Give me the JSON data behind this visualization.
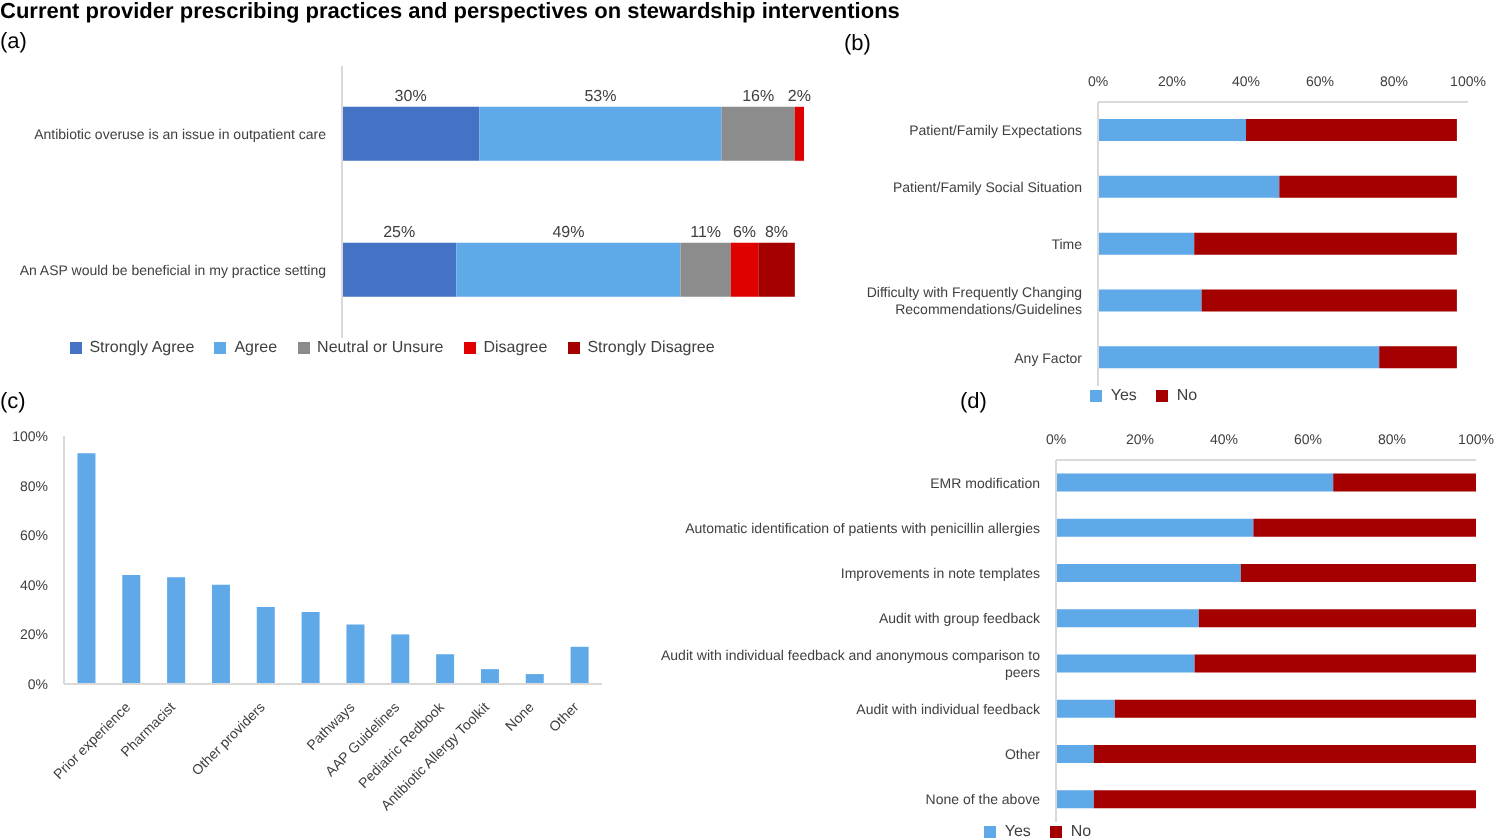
{
  "chart_data": [
    {
      "type": "bar",
      "title": "Current provider prescribing practices and perspectives on stewardship interventions",
      "subtitle": "(a)",
      "orientation": "horizontal",
      "stacked": true,
      "tick_labels": "y",
      "legend": "bottom",
      "categories": [
        "Antibiotic overuse is an issue in outpatient care",
        "An ASP would be beneficial in my practice setting"
      ],
      "series": [
        {
          "name": "Strongly Agree",
          "color": "#4472c4",
          "values": [
            30,
            25
          ],
          "value_labels": [
            "30%",
            "25%"
          ]
        },
        {
          "name": "Agree",
          "color": "#5fa9e8",
          "values": [
            53,
            49
          ],
          "value_labels": [
            "53%",
            "49%"
          ]
        },
        {
          "name": "Neutral or Unsure",
          "color": "#8c8c8c",
          "values": [
            16,
            11
          ],
          "value_labels": [
            "16%",
            "11%"
          ]
        },
        {
          "name": "Disagree",
          "color": "#e00000",
          "values": [
            2,
            6
          ],
          "value_labels": [
            "2%",
            "6%"
          ]
        },
        {
          "name": "Strongly Disagree",
          "color": "#a50000",
          "values": [
            0,
            8
          ],
          "value_labels": [
            null,
            "8%"
          ]
        }
      ]
    },
    {
      "type": "bar",
      "title": "(b)",
      "orientation": "horizontal",
      "stacked": true,
      "legend": "bottom",
      "categories": [
        "Patient/Family Expectations",
        "Patient/Family Social Situation",
        "Time",
        "Difficulty with Frequently Changing Recommendations/Guidelines",
        "Any Factor"
      ],
      "series": [
        {
          "name": "Yes",
          "color": "#5fa9e8",
          "values": [
            40,
            49,
            26,
            28,
            76
          ]
        },
        {
          "name": "No",
          "color": "#a50000",
          "values": [
            57,
            48,
            71,
            69,
            21
          ]
        }
      ],
      "xlim": [
        0,
        100
      ],
      "xticks": [
        {
          "value": 0,
          "label": "0%"
        },
        {
          "value": 20,
          "label": "20%"
        },
        {
          "value": 40,
          "label": "40%"
        },
        {
          "value": 60,
          "label": "60%"
        },
        {
          "value": 80,
          "label": "80%"
        },
        {
          "value": 100,
          "label": "100%"
        }
      ]
    },
    {
      "type": "bar",
      "title": "(c)",
      "categories": [
        null,
        "Prior experience",
        "Pharmacist",
        null,
        "Other providers",
        null,
        "Pathways",
        "AAP Guidelines",
        "Pediatric Redbook",
        "Antibiotic Allergy Toolkit",
        "None",
        "Other"
      ],
      "values": [
        93,
        44,
        43,
        40,
        31,
        29,
        24,
        20,
        12,
        6,
        4,
        15
      ],
      "color": "#5fa9e8",
      "ylim": [
        0,
        100
      ],
      "yticks": [
        {
          "value": 0,
          "label": "0%"
        },
        {
          "value": 20,
          "label": "20%"
        },
        {
          "value": 40,
          "label": "40%"
        },
        {
          "value": 60,
          "label": "60%"
        },
        {
          "value": 80,
          "label": "80%"
        },
        {
          "value": 100,
          "label": "100%"
        }
      ]
    },
    {
      "type": "bar",
      "title": "(d)",
      "orientation": "horizontal",
      "stacked": true,
      "legend": "bottom",
      "categories": [
        "EMR modification",
        "Automatic identification of patients with penicillin allergies",
        "Improvements in note templates",
        "Audit with group feedback",
        "Audit with individual feedback and anonymous comparison to peers",
        "Audit with individual feedback",
        "Other",
        "None of the above"
      ],
      "series": [
        {
          "name": "Yes",
          "color": "#5fa9e8",
          "values": [
            66,
            47,
            44,
            34,
            33,
            14,
            9,
            9
          ]
        },
        {
          "name": "No",
          "color": "#a50000",
          "values": [
            34,
            53,
            56,
            66,
            67,
            86,
            91,
            91
          ]
        }
      ],
      "xlim": [
        0,
        100
      ],
      "xticks": [
        {
          "value": 0,
          "label": "0%"
        },
        {
          "value": 20,
          "label": "20%"
        },
        {
          "value": 40,
          "label": "40%"
        },
        {
          "value": 60,
          "label": "60%"
        },
        {
          "value": 80,
          "label": "80%"
        },
        {
          "value": 100,
          "label": "100%"
        }
      ]
    }
  ]
}
